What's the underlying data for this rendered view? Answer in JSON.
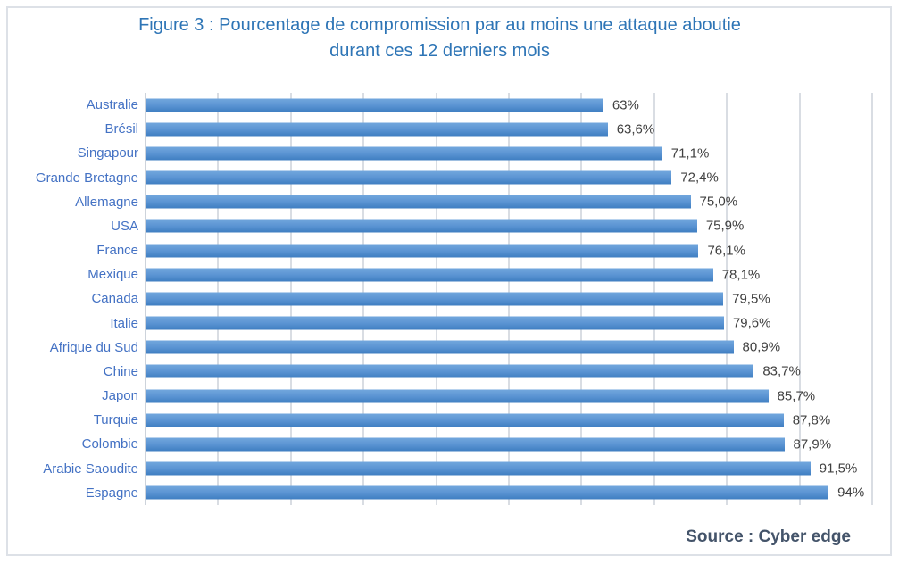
{
  "figure": {
    "title_line1": "Figure 3 : Pourcentage de compromission par au moins une attaque aboutie",
    "title_line2": "durant ces 12 derniers mois",
    "source": "Source : Cyber edge"
  },
  "chart_data": {
    "type": "bar",
    "orientation": "horizontal",
    "title": "Figure 3 : Pourcentage de compromission par au moins une attaque aboutie durant ces 12 derniers mois",
    "categories": [
      "Australie",
      "Brésil",
      "Singapour",
      "Grande Bretagne",
      "Allemagne",
      "USA",
      "France",
      "Mexique",
      "Canada",
      "Italie",
      "Afrique du Sud",
      "Chine",
      "Japon",
      "Turquie",
      "Colombie",
      "Arabie Saoudite",
      "Espagne"
    ],
    "values": [
      63,
      63.6,
      71.1,
      72.4,
      75.0,
      75.9,
      76.1,
      78.1,
      79.5,
      79.6,
      80.9,
      83.7,
      85.7,
      87.8,
      87.9,
      91.5,
      94
    ],
    "value_labels": [
      "63%",
      "63,6%",
      "71,1%",
      "72,4%",
      "75,0%",
      "75,9%",
      "76,1%",
      "78,1%",
      "79,5%",
      "79,6%",
      "80,9%",
      "83,7%",
      "85,7%",
      "87,8%",
      "87,9%",
      "91,5%",
      "94%"
    ],
    "xlabel": "",
    "ylabel": "",
    "xlim": [
      0,
      100
    ],
    "gridline_step_pct": 10,
    "grid": true,
    "legend": false,
    "source": "Source : Cyber edge"
  },
  "colors": {
    "title": "#2e75b6",
    "category_label": "#4472c4",
    "value_label": "#404040",
    "source": "#44546a",
    "bar_gradient_top": "#72a7dd",
    "bar_gradient_mid": "#5b94d3",
    "bar_gradient_bottom": "#3f7ec1",
    "gridline": "#d9dde3",
    "axis_line": "#cdd3db",
    "frame_border": "#dde1e7"
  }
}
